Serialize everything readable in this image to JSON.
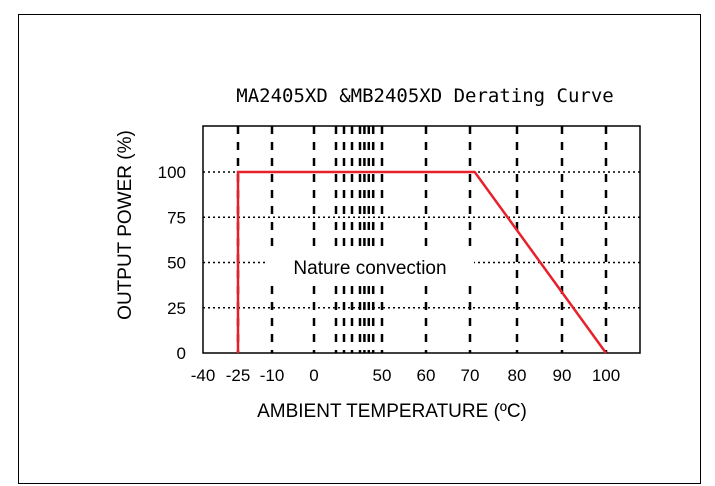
{
  "chart_data": {
    "type": "line",
    "title": "MA2405XD &MB2405XD Derating Curve",
    "xlabel": "AMBIENT TEMPERATURE (ºC)",
    "ylabel": "OUTPUT POWER (%)",
    "xlim": [
      -40,
      105
    ],
    "ylim": [
      0,
      125
    ],
    "x_ticks": [
      -40,
      -25,
      -10,
      0,
      50,
      60,
      70,
      80,
      90,
      100
    ],
    "y_ticks": [
      0,
      25,
      50,
      75,
      100
    ],
    "vertical_gridlines": [
      -25,
      -10,
      0,
      10,
      15,
      20,
      25,
      30,
      35,
      40,
      50,
      60,
      70,
      80,
      90,
      100
    ],
    "horizontal_gridlines": [
      25,
      50,
      75,
      100
    ],
    "grid": true,
    "series": [
      {
        "x": [
          -25,
          -25,
          71,
          100
        ],
        "y": [
          0,
          100,
          100,
          0
        ],
        "color": "#e8202a"
      }
    ],
    "annotation": "Nature convection"
  }
}
